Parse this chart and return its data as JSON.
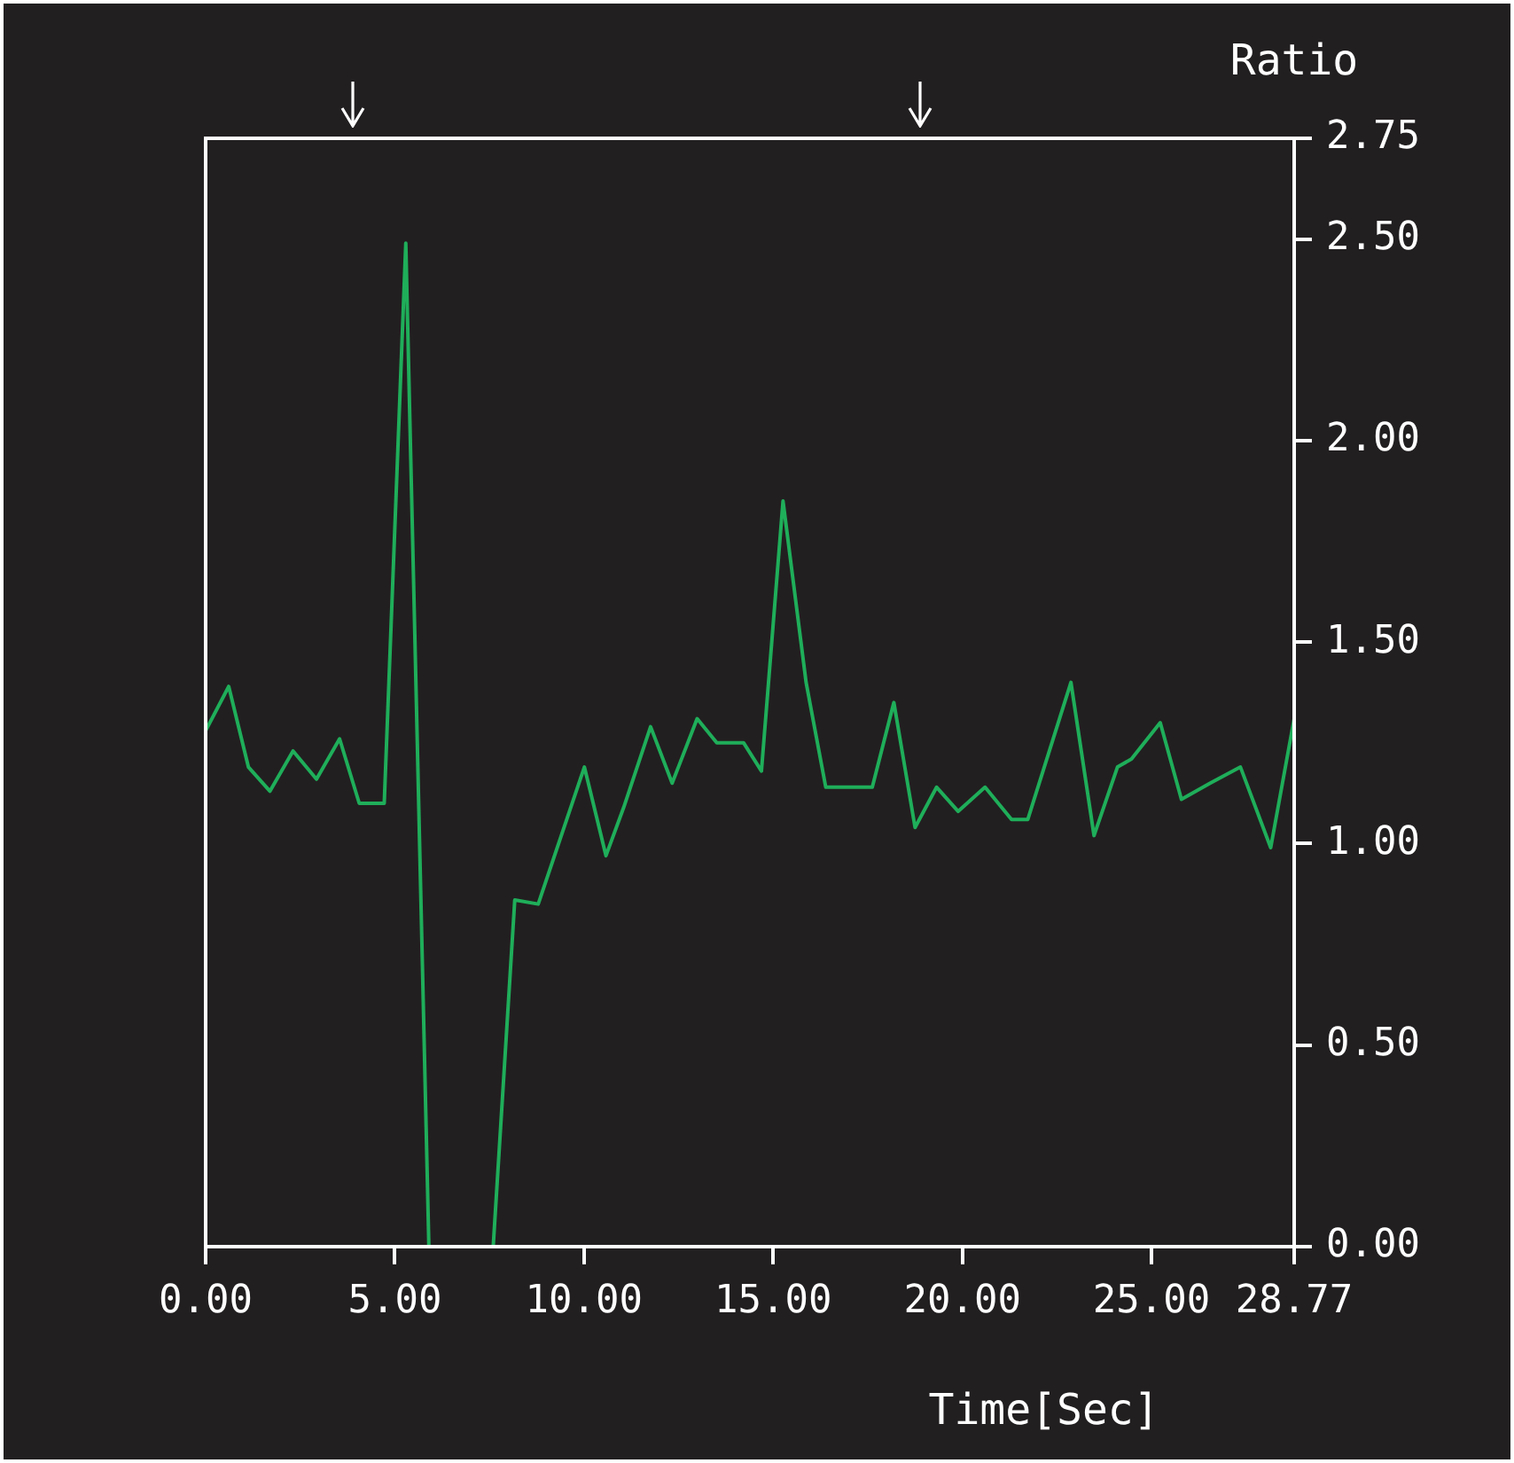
{
  "chart_data": {
    "type": "line",
    "xlabel": "Time[Sec]",
    "ylabel": "Ratio",
    "x": [
      0,
      0.61,
      1.13,
      1.7,
      2.31,
      2.93,
      3.54,
      4.06,
      4.72,
      5.29,
      5.9,
      6.7,
      7.6,
      8.17,
      8.79,
      10.01,
      10.58,
      11.05,
      11.76,
      12.33,
      12.99,
      13.51,
      14.22,
      14.69,
      15.26,
      15.87,
      16.39,
      17.62,
      18.19,
      18.75,
      19.32,
      19.89,
      20.6,
      21.3,
      21.73,
      22.87,
      23.48,
      24.1,
      24.47,
      25.23,
      25.79,
      26.55,
      27.35,
      28.15,
      28.77
    ],
    "series": [
      {
        "color": "#1fae5a",
        "values": [
          1.28,
          1.39,
          1.19,
          1.13,
          1.23,
          1.16,
          1.26,
          1.1,
          1.1,
          2.49,
          0,
          null,
          0,
          0.86,
          0.85,
          1.19,
          0.97,
          1.09,
          1.29,
          1.15,
          1.31,
          1.25,
          1.25,
          1.18,
          1.85,
          1.4,
          1.14,
          1.14,
          1.35,
          1.04,
          1.14,
          1.08,
          1.14,
          1.06,
          1.06,
          1.4,
          1.02,
          1.19,
          1.21,
          1.3,
          1.11,
          1.15,
          1.19,
          0.99,
          1.31
        ]
      }
    ],
    "xlim": [
      0,
      28.77
    ],
    "xticks": [
      {
        "value": 0,
        "label": "0.00"
      },
      {
        "value": 5,
        "label": "5.00"
      },
      {
        "value": 10,
        "label": "10.00"
      },
      {
        "value": 15,
        "label": "15.00"
      },
      {
        "value": 20,
        "label": "20.00"
      },
      {
        "value": 25,
        "label": "25.00"
      },
      {
        "value": 28.77,
        "label": "28.77"
      }
    ],
    "ylim": [
      0,
      2.75
    ],
    "yticks": [
      {
        "value": 0,
        "label": "0.00"
      },
      {
        "value": 0.5,
        "label": "0.50"
      },
      {
        "value": 1,
        "label": "1.00"
      },
      {
        "value": 1.5,
        "label": "1.50"
      },
      {
        "value": 2,
        "label": "2.00"
      },
      {
        "value": 2.5,
        "label": "2.50"
      },
      {
        "value": 2.75,
        "label": "2.75"
      }
    ],
    "grid": false,
    "legend": false,
    "marker": "none",
    "line_style": "solid"
  }
}
